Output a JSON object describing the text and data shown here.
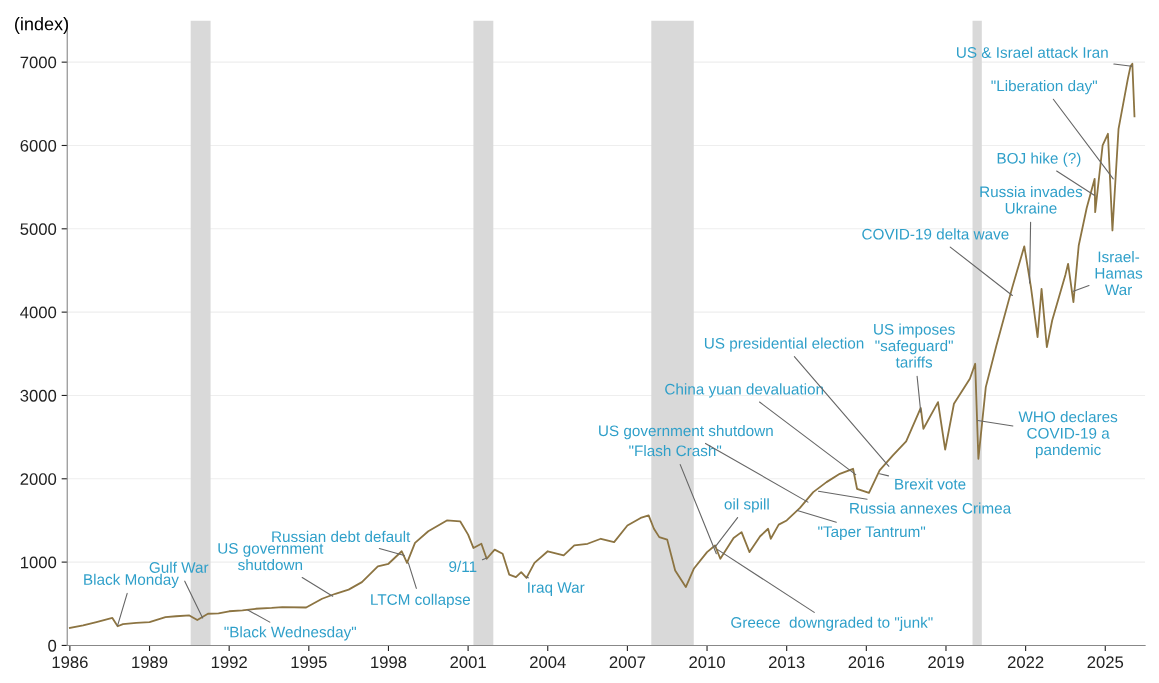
{
  "chart_data": {
    "type": "line",
    "ylabel": "(index)",
    "series": [
      {
        "color": "#8c7442",
        "x": [
          1986.0,
          1986.5,
          1987.0,
          1987.6,
          1987.8,
          1988.0,
          1988.5,
          1989.0,
          1989.6,
          1990.0,
          1990.5,
          1990.8,
          1991.2,
          1991.6,
          1992.0,
          1992.5,
          1993.0,
          1993.6,
          1994.0,
          1994.9,
          1995.5,
          1996.0,
          1996.5,
          1997.0,
          1997.6,
          1998.0,
          1998.5,
          1998.7,
          1999.0,
          1999.5,
          2000.2,
          2000.7,
          2001.0,
          2001.2,
          2001.5,
          2001.7,
          2002.0,
          2002.3,
          2002.55,
          2002.8,
          2003.0,
          2003.2,
          2003.5,
          2004.0,
          2004.6,
          2005.0,
          2005.5,
          2006.0,
          2006.5,
          2007.0,
          2007.5,
          2007.8,
          2008.0,
          2008.2,
          2008.5,
          2008.8,
          2009.2,
          2009.5,
          2010.0,
          2010.3,
          2010.5,
          2011.0,
          2011.3,
          2011.6,
          2012.0,
          2012.3,
          2012.4,
          2012.7,
          2013.0,
          2013.5,
          2014.0,
          2014.5,
          2015.0,
          2015.5,
          2015.65,
          2016.1,
          2016.5,
          2017.0,
          2017.5,
          2018.05,
          2018.15,
          2018.7,
          2018.97,
          2019.3,
          2019.9,
          2020.1,
          2020.22,
          2020.5,
          2020.9,
          2021.5,
          2021.95,
          2022.2,
          2022.45,
          2022.6,
          2022.8,
          2023.0,
          2023.5,
          2023.6,
          2023.8,
          2024.0,
          2024.3,
          2024.6,
          2024.62,
          2024.9,
          2025.1,
          2025.27,
          2025.5,
          2025.85,
          2025.95,
          2026.02,
          2026.1
        ],
        "values": [
          210,
          240,
          280,
          330,
          230,
          255,
          270,
          280,
          340,
          350,
          360,
          305,
          380,
          385,
          410,
          420,
          440,
          450,
          460,
          455,
          560,
          620,
          670,
          760,
          950,
          980,
          1130,
          990,
          1230,
          1370,
          1500,
          1490,
          1330,
          1170,
          1220,
          1040,
          1150,
          1100,
          850,
          820,
          880,
          810,
          990,
          1130,
          1080,
          1200,
          1220,
          1280,
          1240,
          1440,
          1530,
          1560,
          1400,
          1300,
          1270,
          900,
          700,
          920,
          1120,
          1200,
          1040,
          1290,
          1360,
          1120,
          1310,
          1400,
          1280,
          1450,
          1500,
          1650,
          1840,
          1960,
          2060,
          2120,
          1880,
          1830,
          2100,
          2280,
          2450,
          2850,
          2600,
          2920,
          2350,
          2900,
          3200,
          3380,
          2240,
          3100,
          3600,
          4300,
          4790,
          4300,
          3700,
          4280,
          3580,
          3900,
          4450,
          4580,
          4120,
          4800,
          5250,
          5600,
          5200,
          6000,
          6140,
          4980,
          6200,
          6800,
          6950,
          6980,
          6350
        ]
      }
    ],
    "xlim": [
      1985.9,
      2026.5
    ],
    "xticks": [
      1986,
      1989,
      1992,
      1995,
      1998,
      2001,
      2004,
      2007,
      2010,
      2013,
      2016,
      2019,
      2022,
      2025
    ],
    "ylim": [
      0,
      7500
    ],
    "yticks": [
      0,
      1000,
      2000,
      3000,
      4000,
      5000,
      6000,
      7000
    ],
    "grid": "y",
    "bands": [
      {
        "axis": "x",
        "from": 1990.55,
        "to": 1991.3,
        "color": "#d9d9d9"
      },
      {
        "axis": "x",
        "from": 2001.2,
        "to": 2001.95,
        "color": "#d9d9d9"
      },
      {
        "axis": "x",
        "from": 2007.9,
        "to": 2009.5,
        "color": "#d9d9d9"
      },
      {
        "axis": "x",
        "from": 2020.0,
        "to": 2020.35,
        "color": "#d9d9d9"
      }
    ],
    "annotations": [
      {
        "text": "Black Monday",
        "x": 1987.8,
        "y": 240
      },
      {
        "text": "Gulf War",
        "x": 1991.0,
        "y": 330
      },
      {
        "text": "\"Black Wednesday\"",
        "x": 1992.7,
        "y": 425
      },
      {
        "text": "US government\nshutdown",
        "x": 1995.9,
        "y": 590
      },
      {
        "text": "Russian debt default",
        "x": 1998.6,
        "y": 1080
      },
      {
        "text": "LTCM collapse",
        "x": 1998.75,
        "y": 990
      },
      {
        "text": "9/11",
        "x": 2001.7,
        "y": 1050
      },
      {
        "text": "Iraq War",
        "x": 2003.2,
        "y": 820
      },
      {
        "text": "\"Flash Crash\"",
        "x": 2010.35,
        "y": 1100
      },
      {
        "text": "oil spill",
        "x": 2010.3,
        "y": 1180
      },
      {
        "text": "Greece  downgraded to \"junk\"",
        "x": 2010.4,
        "y": 1150
      },
      {
        "text": "US government shutdown",
        "x": 2013.8,
        "y": 1720
      },
      {
        "text": "\"Taper Tantrum\"",
        "x": 2013.4,
        "y": 1620
      },
      {
        "text": "Russia annexes Crimea",
        "x": 2014.2,
        "y": 1850
      },
      {
        "text": "China yuan devaluation",
        "x": 2015.6,
        "y": 2050
      },
      {
        "text": "US presidential election",
        "x": 2016.85,
        "y": 2150
      },
      {
        "text": "Brexit vote",
        "x": 2016.5,
        "y": 2060
      },
      {
        "text": "US imposes\n\"safeguard\"\ntariffs",
        "x": 2018.05,
        "y": 2800
      },
      {
        "text": "WHO declares\nCOVID-19 a\npandemic",
        "x": 2020.2,
        "y": 2700
      },
      {
        "text": "COVID-19 delta wave",
        "x": 2021.5,
        "y": 4200
      },
      {
        "text": "Russia invades\nUkraine",
        "x": 2022.15,
        "y": 4350
      },
      {
        "text": "Israel-\nHamas\nWar",
        "x": 2023.8,
        "y": 4250
      },
      {
        "text": "BOJ hike (?)",
        "x": 2024.6,
        "y": 5400
      },
      {
        "text": "\"Liberation day\"",
        "x": 2025.3,
        "y": 5600
      },
      {
        "text": "US & Israel attack Iran",
        "x": 2026.0,
        "y": 6950
      }
    ]
  }
}
